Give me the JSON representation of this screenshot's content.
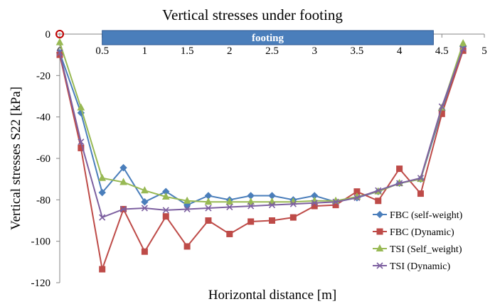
{
  "chart_data": {
    "type": "line",
    "title": "Vertical stresses under footing",
    "xlabel": "Horizontal distance [m]",
    "ylabel": "Vertical stresses S22 [kPa]",
    "xlim": [
      0,
      5
    ],
    "ylim": [
      -120,
      0
    ],
    "x_ticks": [
      "0",
      "0.5",
      "1",
      "1.5",
      "2",
      "2.5",
      "3",
      "3.5",
      "4",
      "4.5",
      "5"
    ],
    "y_ticks": [
      "0",
      "-20",
      "-40",
      "-60",
      "-80",
      "-100",
      "-120"
    ],
    "grid": false,
    "legend_position": "bottom-right",
    "footing": {
      "label": "footing",
      "x_start": 0.5,
      "x_end": 4.4,
      "color": "#4a7ebb"
    },
    "x": [
      0,
      0.25,
      0.5,
      0.75,
      1,
      1.25,
      1.5,
      1.75,
      2,
      2.25,
      2.5,
      2.75,
      3,
      3.25,
      3.5,
      3.75,
      4,
      4.25,
      4.5,
      4.75
    ],
    "series": [
      {
        "name": "FBC (self-weight)",
        "color": "#4a7ebb",
        "marker": "diamond",
        "values": [
          -9,
          -38,
          -76.5,
          -64.5,
          -81,
          -76,
          -82.5,
          -78,
          -80,
          -78,
          -78,
          -80,
          -78,
          -81,
          -79,
          -76,
          -72,
          -70,
          -37,
          -6
        ]
      },
      {
        "name": "FBC (Dynamic)",
        "color": "#be4b48",
        "marker": "square",
        "values": [
          -10,
          -55,
          -113.5,
          -84.5,
          -105,
          -88,
          -102.5,
          -90,
          -96.5,
          -90.5,
          -90,
          -88.5,
          -83,
          -82.5,
          -76,
          -80.5,
          -65,
          -77,
          -38.5,
          -8
        ]
      },
      {
        "name": "TSI (Self_weight)",
        "color": "#98b954",
        "marker": "triangle",
        "values": [
          -4,
          -35.5,
          -69.5,
          -71.5,
          -75.5,
          -78.5,
          -80.5,
          -81,
          -81,
          -81,
          -81,
          -81,
          -80.5,
          -80.5,
          -78.5,
          -76,
          -72,
          -70,
          -35.5,
          -4.5
        ]
      },
      {
        "name": "TSI (Dynamic)",
        "color": "#7d60a0",
        "marker": "x",
        "values": [
          -9,
          -52,
          -88.5,
          -84.5,
          -84,
          -85,
          -84.5,
          -84,
          -83.5,
          -83,
          -82.5,
          -82,
          -81.5,
          -81,
          -79,
          -75.5,
          -72,
          -69.5,
          -35,
          -7
        ]
      }
    ]
  }
}
